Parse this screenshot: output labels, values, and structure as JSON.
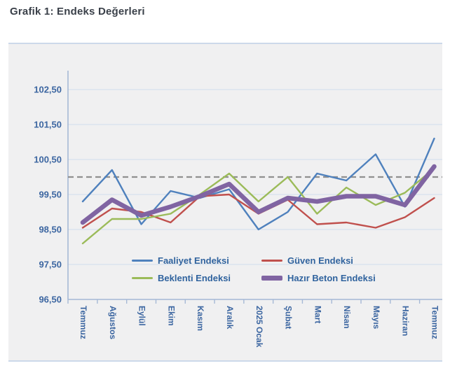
{
  "page": {
    "title": "Grafik 1: Endeks Değerleri"
  },
  "chart_data": {
    "type": "line",
    "title": "Grafik 1: Endeks Değerleri",
    "categories": [
      "Temmuz",
      "Ağustos",
      "Eylül",
      "Ekim",
      "Kasım",
      "Aralık",
      "2025 Ocak",
      "Şubat",
      "Mart",
      "Nisan",
      "Mayıs",
      "Haziran",
      "Temmuz"
    ],
    "series": [
      {
        "name": "Faaliyet Endeksi",
        "color": "#4F81BD",
        "line_width": 2.4,
        "values": [
          99.3,
          100.2,
          98.65,
          99.6,
          99.4,
          99.65,
          98.5,
          99.0,
          100.1,
          99.9,
          100.65,
          99.15,
          101.1
        ]
      },
      {
        "name": "Güven Endeksi",
        "color": "#C0504D",
        "line_width": 2.4,
        "values": [
          98.55,
          99.1,
          99.0,
          98.7,
          99.45,
          99.5,
          98.95,
          99.35,
          98.65,
          98.7,
          98.55,
          98.85,
          99.4
        ]
      },
      {
        "name": "Beklenti Endeksi",
        "color": "#9BBB59",
        "line_width": 2.4,
        "values": [
          98.1,
          98.8,
          98.8,
          98.95,
          99.5,
          100.1,
          99.3,
          100.0,
          98.95,
          99.7,
          99.2,
          99.55,
          100.25
        ]
      },
      {
        "name": "Hazır Beton Endeksi",
        "color": "#8064A2",
        "line_width": 6.5,
        "values": [
          98.7,
          99.35,
          98.9,
          99.15,
          99.45,
          99.8,
          99.0,
          99.4,
          99.3,
          99.45,
          99.45,
          99.2,
          100.3
        ]
      }
    ],
    "y_axis": {
      "tick_labels": [
        "96,50",
        "97,50",
        "98,50",
        "99,50",
        "100,50",
        "101,50",
        "102,50"
      ],
      "tick_values": [
        96.5,
        97.5,
        98.5,
        99.5,
        100.5,
        101.5,
        102.5
      ],
      "min": 96.5,
      "max": 103.1,
      "decimal_separator": ","
    },
    "reference_line": {
      "value": 100.0,
      "style": "dashed",
      "color": "#8f8f8f"
    },
    "grid": true,
    "legend_position": "inside-bottom",
    "legend_order": [
      "Faaliyet Endeksi",
      "Güven Endeksi",
      "Beklenti Endeksi",
      "Hazır Beton Endeksi"
    ]
  }
}
